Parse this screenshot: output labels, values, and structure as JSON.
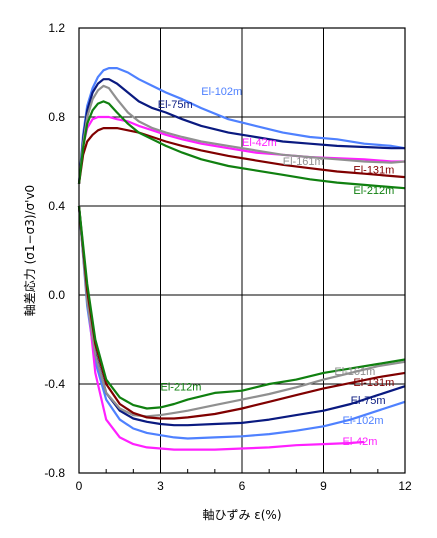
{
  "chart_data": {
    "type": "line",
    "title": "",
    "xlabel": "軸ひずみ ε(%)",
    "ylabel": "軸差応力 (σ1−σ3)/σ'v0",
    "xlim": [
      0,
      12
    ],
    "ylim": [
      -0.8,
      1.2
    ],
    "x_ticks": [
      "0",
      "3",
      "6",
      "9",
      "12"
    ],
    "y_ticks": [
      "1.2",
      "0.8",
      "0.4",
      "0.0",
      "-0.4",
      "-0.8"
    ],
    "grid": true,
    "legend": "labels placed at line ends",
    "series": [
      {
        "name": "El-102m",
        "color": "#4f81ff",
        "compression": {
          "x": [
            0,
            0.15,
            0.3,
            0.5,
            0.7,
            0.9,
            1.1,
            1.4,
            1.8,
            2.2,
            2.7,
            3.2,
            3.8,
            4.5,
            5.5,
            6.5,
            7.5,
            8.5,
            9.5,
            10.5,
            11.5,
            12
          ],
          "y": [
            0.5,
            0.72,
            0.85,
            0.93,
            0.98,
            1.01,
            1.02,
            1.02,
            1.0,
            0.97,
            0.94,
            0.91,
            0.88,
            0.84,
            0.79,
            0.76,
            0.73,
            0.71,
            0.7,
            0.68,
            0.67,
            0.66
          ]
        },
        "extension": {
          "x": [
            0,
            0.3,
            0.6,
            1.0,
            1.5,
            2.0,
            2.5,
            3.0,
            3.5,
            4.0,
            5.0,
            6.0,
            7.0,
            8.0,
            9.0,
            10.0,
            11.0,
            12.0
          ],
          "y": [
            0.4,
            -0.05,
            -0.3,
            -0.47,
            -0.56,
            -0.6,
            -0.62,
            -0.63,
            -0.64,
            -0.645,
            -0.64,
            -0.635,
            -0.625,
            -0.61,
            -0.59,
            -0.56,
            -0.52,
            -0.48
          ]
        }
      },
      {
        "name": "El-75m",
        "color": "#0a1a80",
        "compression": {
          "x": [
            0,
            0.15,
            0.3,
            0.5,
            0.7,
            0.9,
            1.1,
            1.4,
            1.8,
            2.2,
            2.7,
            3.2,
            3.8,
            4.5,
            5.5,
            6.5,
            7.5,
            8.5,
            9.5,
            10.5,
            11.5,
            12
          ],
          "y": [
            0.5,
            0.7,
            0.83,
            0.91,
            0.95,
            0.97,
            0.97,
            0.95,
            0.91,
            0.87,
            0.84,
            0.82,
            0.79,
            0.76,
            0.73,
            0.71,
            0.69,
            0.68,
            0.67,
            0.665,
            0.66,
            0.66
          ]
        },
        "extension": {
          "x": [
            0,
            0.3,
            0.6,
            1.0,
            1.5,
            2.0,
            2.5,
            3.0,
            3.5,
            4.0,
            5.0,
            6.0,
            7.0,
            8.0,
            9.0,
            10.0,
            11.0,
            12.0
          ],
          "y": [
            0.4,
            -0.02,
            -0.26,
            -0.44,
            -0.52,
            -0.555,
            -0.57,
            -0.58,
            -0.585,
            -0.585,
            -0.58,
            -0.575,
            -0.56,
            -0.54,
            -0.52,
            -0.49,
            -0.45,
            -0.41
          ]
        }
      },
      {
        "name": "El-42m",
        "color": "#ff20ff",
        "compression": {
          "x": [
            0,
            0.15,
            0.3,
            0.5,
            0.7,
            0.9,
            1.1,
            1.4,
            1.8,
            2.2,
            2.7,
            3.2,
            3.8,
            4.5,
            5.5,
            6.5,
            7.5,
            8.5,
            9.5,
            10.5,
            11.5,
            12
          ],
          "y": [
            0.5,
            0.67,
            0.75,
            0.79,
            0.8,
            0.8,
            0.8,
            0.79,
            0.78,
            0.76,
            0.74,
            0.72,
            0.7,
            0.68,
            0.66,
            0.64,
            0.63,
            0.62,
            0.615,
            0.61,
            0.6,
            0.6
          ]
        },
        "extension": {
          "x": [
            0,
            0.3,
            0.6,
            1.0,
            1.5,
            2.0,
            2.5,
            3.0,
            3.5,
            4.0,
            5.0,
            6.0,
            7.0,
            8.0,
            9.0,
            10.0,
            10.5
          ],
          "y": [
            0.4,
            0.0,
            -0.35,
            -0.56,
            -0.64,
            -0.67,
            -0.685,
            -0.69,
            -0.695,
            -0.695,
            -0.695,
            -0.69,
            -0.685,
            -0.675,
            -0.67,
            -0.665,
            -0.66
          ]
        }
      },
      {
        "name": "El-161m",
        "color": "#909090",
        "compression": {
          "x": [
            0,
            0.15,
            0.3,
            0.5,
            0.7,
            0.9,
            1.1,
            1.4,
            1.8,
            2.2,
            2.7,
            3.2,
            3.8,
            4.5,
            5.5,
            6.5,
            7.5,
            8.5,
            9.5,
            10.5,
            11.5,
            12
          ],
          "y": [
            0.5,
            0.68,
            0.8,
            0.88,
            0.92,
            0.94,
            0.93,
            0.88,
            0.82,
            0.78,
            0.75,
            0.73,
            0.71,
            0.69,
            0.67,
            0.65,
            0.63,
            0.62,
            0.61,
            0.6,
            0.595,
            0.6
          ]
        },
        "extension": {
          "x": [
            0,
            0.3,
            0.6,
            1.0,
            1.5,
            2.0,
            2.5,
            3.0,
            3.5,
            4.0,
            5.0,
            6.0,
            7.0,
            8.0,
            9.0,
            10.0,
            11.0,
            12.0
          ],
          "y": [
            0.4,
            -0.03,
            -0.27,
            -0.44,
            -0.51,
            -0.54,
            -0.545,
            -0.54,
            -0.53,
            -0.52,
            -0.495,
            -0.47,
            -0.445,
            -0.415,
            -0.38,
            -0.35,
            -0.32,
            -0.3
          ]
        }
      },
      {
        "name": "El-131m",
        "color": "#800000",
        "compression": {
          "x": [
            0,
            0.15,
            0.3,
            0.5,
            0.7,
            0.9,
            1.1,
            1.4,
            1.8,
            2.2,
            2.7,
            3.2,
            3.8,
            4.5,
            5.5,
            6.5,
            7.5,
            8.5,
            9.5,
            10.5,
            11.5,
            12
          ],
          "y": [
            0.5,
            0.63,
            0.69,
            0.72,
            0.74,
            0.75,
            0.75,
            0.75,
            0.74,
            0.73,
            0.71,
            0.69,
            0.67,
            0.65,
            0.625,
            0.605,
            0.585,
            0.57,
            0.555,
            0.545,
            0.535,
            0.53
          ]
        },
        "extension": {
          "x": [
            0,
            0.3,
            0.6,
            1.0,
            1.5,
            2.0,
            2.5,
            3.0,
            3.5,
            4.0,
            5.0,
            6.0,
            7.0,
            8.0,
            9.0,
            10.0,
            11.0,
            12.0
          ],
          "y": [
            0.4,
            0.02,
            -0.22,
            -0.4,
            -0.49,
            -0.53,
            -0.55,
            -0.555,
            -0.555,
            -0.55,
            -0.535,
            -0.51,
            -0.48,
            -0.45,
            -0.42,
            -0.395,
            -0.37,
            -0.35
          ]
        }
      },
      {
        "name": "El-212m",
        "color": "#108010",
        "compression": {
          "x": [
            0,
            0.15,
            0.3,
            0.5,
            0.7,
            0.9,
            1.1,
            1.4,
            1.8,
            2.2,
            2.7,
            3.2,
            3.8,
            4.5,
            5.5,
            6.5,
            7.5,
            8.5,
            9.5,
            10.5,
            11.5,
            12
          ],
          "y": [
            0.5,
            0.66,
            0.77,
            0.83,
            0.86,
            0.87,
            0.86,
            0.82,
            0.77,
            0.73,
            0.7,
            0.67,
            0.64,
            0.61,
            0.58,
            0.56,
            0.54,
            0.52,
            0.505,
            0.495,
            0.485,
            0.48
          ]
        },
        "extension": {
          "x": [
            0,
            0.3,
            0.6,
            1.0,
            1.5,
            2.0,
            2.5,
            3.0,
            3.5,
            4.0,
            5.0,
            6.0,
            7.0,
            8.0,
            9.0,
            10.0,
            11.0,
            12.0
          ],
          "y": [
            0.4,
            0.05,
            -0.2,
            -0.38,
            -0.46,
            -0.495,
            -0.51,
            -0.505,
            -0.49,
            -0.47,
            -0.44,
            -0.43,
            -0.4,
            -0.38,
            -0.35,
            -0.33,
            -0.31,
            -0.29
          ]
        }
      }
    ],
    "annotations": [
      {
        "text": "El-102m",
        "x": 4.5,
        "y": 0.9,
        "series": 0
      },
      {
        "text": "El-75m",
        "x": 2.9,
        "y": 0.84,
        "series": 1
      },
      {
        "text": "El-42m",
        "x": 6.0,
        "y": 0.67,
        "series": 2
      },
      {
        "text": "El-161m",
        "x": 7.5,
        "y": 0.585,
        "series": 3
      },
      {
        "text": "El-131m",
        "x": 10.1,
        "y": 0.545,
        "series": 4
      },
      {
        "text": "El-212m",
        "x": 10.1,
        "y": 0.455,
        "series": 5
      },
      {
        "text": "El-212m",
        "x": 3.0,
        "y": -0.43,
        "series": 5
      },
      {
        "text": "El-161m",
        "x": 9.4,
        "y": -0.36,
        "series": 3
      },
      {
        "text": "El-131m",
        "x": 10.1,
        "y": -0.41,
        "series": 4
      },
      {
        "text": "El-75m",
        "x": 10.0,
        "y": -0.49,
        "series": 1
      },
      {
        "text": "El-102m",
        "x": 9.7,
        "y": -0.58,
        "series": 0
      },
      {
        "text": "El-42m",
        "x": 9.7,
        "y": -0.675,
        "series": 2
      }
    ]
  }
}
